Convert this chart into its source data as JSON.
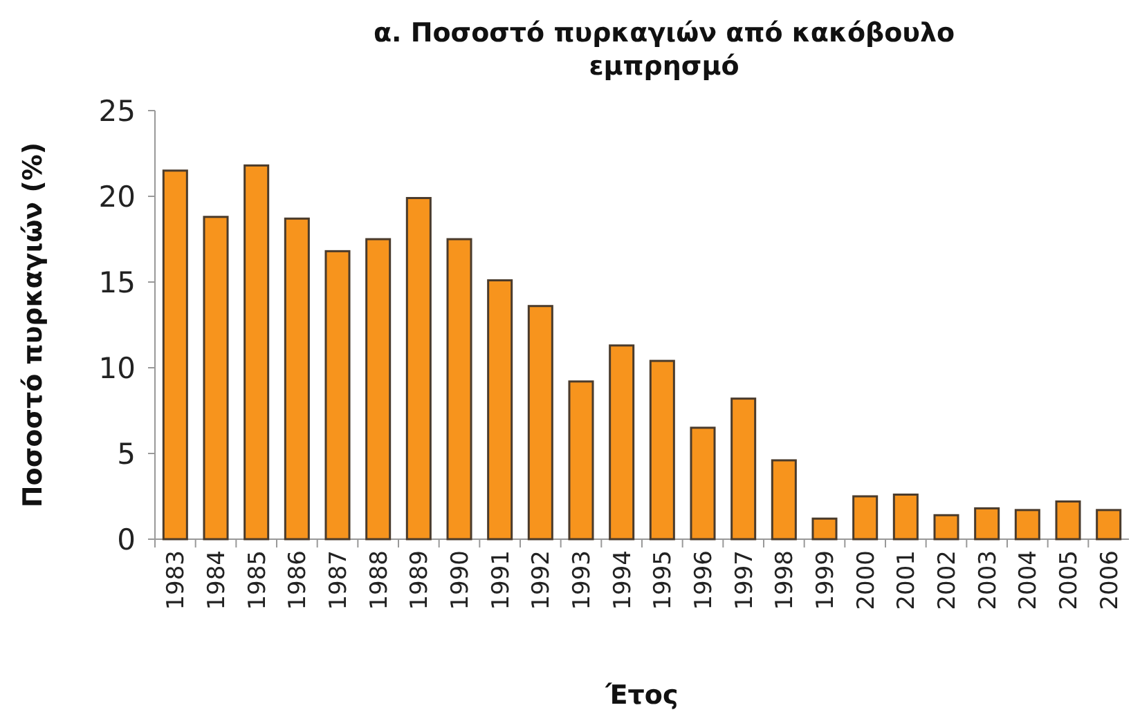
{
  "chart_data": {
    "type": "bar",
    "title": "α. Ποσοστό πυρκαγιών από κακόβουλο εμπρησμό",
    "xlabel": "Έτος",
    "ylabel": "Ποσοστό πυρκαγιών (%)",
    "categories": [
      "1983",
      "1984",
      "1985",
      "1986",
      "1987",
      "1988",
      "1989",
      "1990",
      "1991",
      "1992",
      "1993",
      "1994",
      "1995",
      "1996",
      "1997",
      "1998",
      "1999",
      "2000",
      "2001",
      "2002",
      "2003",
      "2004",
      "2005",
      "2006"
    ],
    "values": [
      21.5,
      18.8,
      21.8,
      18.7,
      16.8,
      17.5,
      19.9,
      17.5,
      15.1,
      13.6,
      9.2,
      11.3,
      10.4,
      6.5,
      8.2,
      4.6,
      1.2,
      2.5,
      2.6,
      1.4,
      1.8,
      1.7,
      2.2,
      1.7
    ],
    "color": "#f7941d",
    "ylim": [
      0,
      25
    ],
    "yticks": [
      0,
      5,
      10,
      15,
      20,
      25
    ],
    "grid": false
  }
}
